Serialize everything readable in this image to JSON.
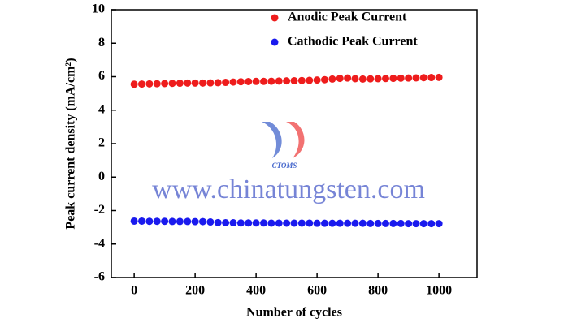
{
  "chart_data": {
    "type": "scatter",
    "xlabel": "Number of cycles",
    "ylabel": "Peak current density (mA/cm²)",
    "x": [
      0,
      25,
      50,
      75,
      100,
      125,
      150,
      175,
      200,
      225,
      250,
      275,
      300,
      325,
      350,
      375,
      400,
      425,
      450,
      475,
      500,
      525,
      550,
      575,
      600,
      625,
      650,
      675,
      700,
      725,
      750,
      775,
      800,
      825,
      850,
      875,
      900,
      925,
      950,
      975,
      1000
    ],
    "series": [
      {
        "name": "Anodic Peak Current",
        "color": "#ee1c1c",
        "values": [
          5.55,
          5.56,
          5.57,
          5.58,
          5.59,
          5.6,
          5.61,
          5.62,
          5.62,
          5.62,
          5.63,
          5.64,
          5.66,
          5.68,
          5.7,
          5.71,
          5.72,
          5.72,
          5.73,
          5.74,
          5.75,
          5.76,
          5.77,
          5.78,
          5.8,
          5.82,
          5.86,
          5.9,
          5.92,
          5.88,
          5.86,
          5.87,
          5.88,
          5.89,
          5.9,
          5.91,
          5.92,
          5.93,
          5.94,
          5.95,
          5.96
        ]
      },
      {
        "name": "Cathodic Peak Current",
        "color": "#1a1aee",
        "values": [
          -2.63,
          -2.63,
          -2.64,
          -2.64,
          -2.64,
          -2.65,
          -2.65,
          -2.65,
          -2.66,
          -2.66,
          -2.68,
          -2.72,
          -2.73,
          -2.73,
          -2.74,
          -2.74,
          -2.74,
          -2.74,
          -2.75,
          -2.75,
          -2.75,
          -2.75,
          -2.75,
          -2.75,
          -2.76,
          -2.76,
          -2.76,
          -2.76,
          -2.76,
          -2.76,
          -2.76,
          -2.77,
          -2.77,
          -2.77,
          -2.77,
          -2.77,
          -2.78,
          -2.78,
          -2.78,
          -2.78,
          -2.78
        ]
      }
    ],
    "xlim": [
      -75,
      1125
    ],
    "xticks": [
      0,
      200,
      400,
      600,
      800,
      1000
    ],
    "ylim": [
      -6,
      10
    ],
    "yticks": [
      -6,
      -4,
      -2,
      0,
      2,
      4,
      6,
      8,
      10
    ],
    "legend": "top-right",
    "watermark": "www.chinatungsten.com",
    "watermark_logo": "CTOMS"
  }
}
